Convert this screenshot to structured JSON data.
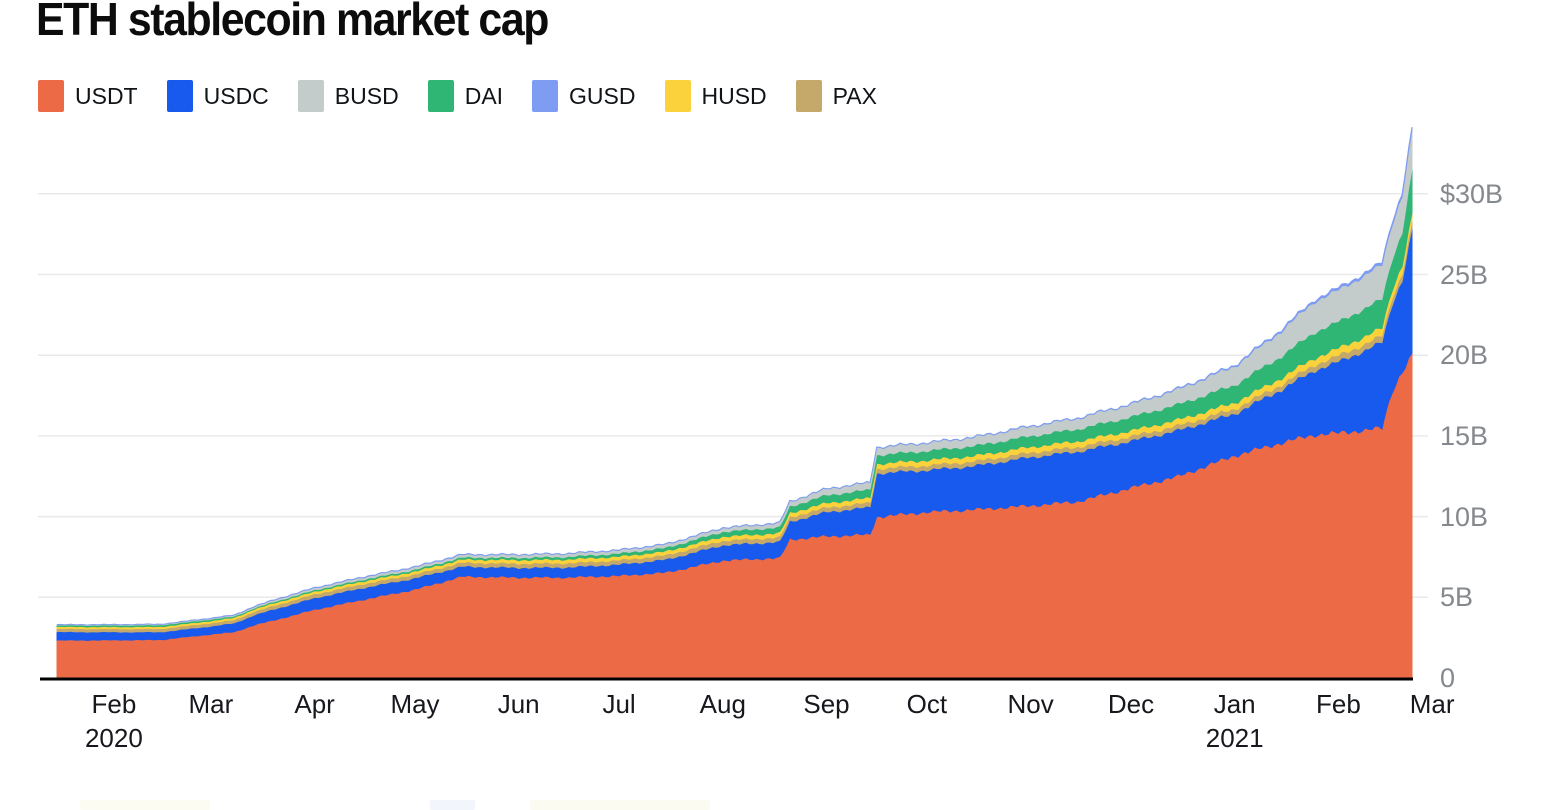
{
  "page": {
    "title": "ETH stablecoin market cap"
  },
  "legend": [
    {
      "label": "USDT",
      "color": "#EC6A45"
    },
    {
      "label": "USDC",
      "color": "#1859EE"
    },
    {
      "label": "BUSD",
      "color": "#C3CCCA"
    },
    {
      "label": "DAI",
      "color": "#2FB574"
    },
    {
      "label": "GUSD",
      "color": "#7E9CF1"
    },
    {
      "label": "HUSD",
      "color": "#FBD23C"
    },
    {
      "label": "PAX",
      "color": "#C4A96A"
    }
  ],
  "chart_data": {
    "type": "area",
    "stacked": true,
    "title": "ETH stablecoin market cap",
    "units": "billions USD",
    "grid": true,
    "legend_position": "top-left",
    "x_axis": "time, mid-Jan 2020 to late Feb 2021 (t = days since 2020-01-15)",
    "x_range": [
      0,
      405
    ],
    "ylim": [
      0,
      34.3
    ],
    "y_ticks": [
      {
        "v": 30,
        "label": "$30B"
      },
      {
        "v": 25,
        "label": "25B"
      },
      {
        "v": 20,
        "label": "20B"
      },
      {
        "v": 15,
        "label": "15B"
      },
      {
        "v": 10,
        "label": "10B"
      },
      {
        "v": 5,
        "label": "5B"
      },
      {
        "v": 0,
        "label": "0"
      }
    ],
    "x_ticks": [
      {
        "t": 17,
        "label": "Feb",
        "sub": "2020"
      },
      {
        "t": 46,
        "label": "Mar"
      },
      {
        "t": 77,
        "label": "Apr"
      },
      {
        "t": 107,
        "label": "May"
      },
      {
        "t": 138,
        "label": "Jun"
      },
      {
        "t": 168,
        "label": "Jul"
      },
      {
        "t": 199,
        "label": "Aug"
      },
      {
        "t": 230,
        "label": "Sep"
      },
      {
        "t": 260,
        "label": "Oct"
      },
      {
        "t": 291,
        "label": "Nov"
      },
      {
        "t": 321,
        "label": "Dec"
      },
      {
        "t": 352,
        "label": "Jan",
        "sub": "2021"
      },
      {
        "t": 383,
        "label": "Feb"
      },
      {
        "t": 411,
        "label": "Mar"
      }
    ],
    "stack_order_bottom_to_top": [
      "USDT",
      "USDC",
      "PAX",
      "HUSD",
      "DAI",
      "BUSD",
      "GUSD"
    ],
    "series": [
      {
        "name": "USDT",
        "color": "#EC6A45",
        "points": [
          [
            0,
            2.35
          ],
          [
            17,
            2.36
          ],
          [
            31,
            2.38
          ],
          [
            46,
            2.72
          ],
          [
            53,
            2.86
          ],
          [
            59,
            3.3
          ],
          [
            65,
            3.6
          ],
          [
            77,
            4.25
          ],
          [
            91,
            4.85
          ],
          [
            107,
            5.5
          ],
          [
            121,
            6.3
          ],
          [
            138,
            6.25
          ],
          [
            152,
            6.25
          ],
          [
            168,
            6.35
          ],
          [
            182,
            6.55
          ],
          [
            199,
            7.3
          ],
          [
            216,
            7.45
          ],
          [
            219,
            8.6
          ],
          [
            230,
            8.8
          ],
          [
            243,
            8.9
          ],
          [
            245,
            10.0
          ],
          [
            260,
            10.3
          ],
          [
            274,
            10.45
          ],
          [
            291,
            10.7
          ],
          [
            305,
            10.95
          ],
          [
            321,
            11.8
          ],
          [
            335,
            12.5
          ],
          [
            352,
            13.8
          ],
          [
            366,
            14.6
          ],
          [
            376,
            15.1
          ],
          [
            383,
            15.2
          ],
          [
            396,
            15.5
          ],
          [
            399,
            17.8
          ],
          [
            402,
            19.0
          ],
          [
            405,
            20.0
          ]
        ]
      },
      {
        "name": "USDC",
        "color": "#1859EE",
        "points": [
          [
            0,
            0.52
          ],
          [
            17,
            0.5
          ],
          [
            31,
            0.48
          ],
          [
            46,
            0.5
          ],
          [
            53,
            0.55
          ],
          [
            59,
            0.62
          ],
          [
            65,
            0.68
          ],
          [
            77,
            0.72
          ],
          [
            91,
            0.73
          ],
          [
            107,
            0.7
          ],
          [
            121,
            0.62
          ],
          [
            138,
            0.6
          ],
          [
            152,
            0.62
          ],
          [
            168,
            0.7
          ],
          [
            182,
            0.8
          ],
          [
            199,
            0.95
          ],
          [
            216,
            1.0
          ],
          [
            219,
            1.1
          ],
          [
            230,
            1.5
          ],
          [
            243,
            1.7
          ],
          [
            245,
            2.7
          ],
          [
            260,
            2.6
          ],
          [
            274,
            2.7
          ],
          [
            291,
            3.0
          ],
          [
            305,
            3.1
          ],
          [
            321,
            2.9
          ],
          [
            335,
            2.85
          ],
          [
            352,
            2.6
          ],
          [
            366,
            3.3
          ],
          [
            376,
            4.0
          ],
          [
            383,
            4.4
          ],
          [
            396,
            5.3
          ],
          [
            399,
            5.4
          ],
          [
            402,
            5.7
          ],
          [
            405,
            7.8
          ]
        ]
      },
      {
        "name": "PAX",
        "color": "#C4A96A",
        "points": [
          [
            0,
            0.2
          ],
          [
            17,
            0.2
          ],
          [
            31,
            0.2
          ],
          [
            46,
            0.2
          ],
          [
            53,
            0.2
          ],
          [
            59,
            0.21
          ],
          [
            65,
            0.22
          ],
          [
            77,
            0.24
          ],
          [
            91,
            0.24
          ],
          [
            107,
            0.24
          ],
          [
            121,
            0.24
          ],
          [
            138,
            0.26
          ],
          [
            152,
            0.26
          ],
          [
            168,
            0.26
          ],
          [
            182,
            0.27
          ],
          [
            199,
            0.28
          ],
          [
            216,
            0.28
          ],
          [
            219,
            0.28
          ],
          [
            230,
            0.28
          ],
          [
            243,
            0.28
          ],
          [
            245,
            0.29
          ],
          [
            260,
            0.29
          ],
          [
            274,
            0.29
          ],
          [
            291,
            0.29
          ],
          [
            305,
            0.29
          ],
          [
            321,
            0.29
          ],
          [
            335,
            0.3
          ],
          [
            352,
            0.3
          ],
          [
            366,
            0.32
          ],
          [
            376,
            0.35
          ],
          [
            383,
            0.38
          ],
          [
            396,
            0.4
          ],
          [
            399,
            0.41
          ],
          [
            402,
            0.42
          ],
          [
            405,
            0.45
          ]
        ]
      },
      {
        "name": "HUSD",
        "color": "#FBD23C",
        "points": [
          [
            0,
            0.12
          ],
          [
            17,
            0.12
          ],
          [
            31,
            0.13
          ],
          [
            46,
            0.13
          ],
          [
            53,
            0.14
          ],
          [
            59,
            0.15
          ],
          [
            65,
            0.16
          ],
          [
            77,
            0.16
          ],
          [
            91,
            0.17
          ],
          [
            107,
            0.18
          ],
          [
            121,
            0.2
          ],
          [
            138,
            0.22
          ],
          [
            152,
            0.23
          ],
          [
            168,
            0.23
          ],
          [
            182,
            0.24
          ],
          [
            199,
            0.25
          ],
          [
            216,
            0.26
          ],
          [
            219,
            0.26
          ],
          [
            230,
            0.28
          ],
          [
            243,
            0.29
          ],
          [
            245,
            0.3
          ],
          [
            260,
            0.32
          ],
          [
            274,
            0.33
          ],
          [
            291,
            0.34
          ],
          [
            305,
            0.35
          ],
          [
            321,
            0.35
          ],
          [
            335,
            0.36
          ],
          [
            352,
            0.38
          ],
          [
            366,
            0.4
          ],
          [
            376,
            0.42
          ],
          [
            383,
            0.45
          ],
          [
            396,
            0.48
          ],
          [
            399,
            0.49
          ],
          [
            402,
            0.5
          ],
          [
            405,
            0.5
          ]
        ]
      },
      {
        "name": "DAI",
        "color": "#2FB574",
        "points": [
          [
            0,
            0.09
          ],
          [
            17,
            0.1
          ],
          [
            31,
            0.1
          ],
          [
            46,
            0.1
          ],
          [
            53,
            0.08
          ],
          [
            59,
            0.07
          ],
          [
            65,
            0.08
          ],
          [
            77,
            0.09
          ],
          [
            91,
            0.1
          ],
          [
            107,
            0.11
          ],
          [
            121,
            0.12
          ],
          [
            138,
            0.14
          ],
          [
            152,
            0.16
          ],
          [
            168,
            0.19
          ],
          [
            182,
            0.22
          ],
          [
            199,
            0.3
          ],
          [
            216,
            0.36
          ],
          [
            219,
            0.4
          ],
          [
            230,
            0.48
          ],
          [
            243,
            0.52
          ],
          [
            245,
            0.55
          ],
          [
            260,
            0.58
          ],
          [
            274,
            0.62
          ],
          [
            291,
            0.68
          ],
          [
            305,
            0.75
          ],
          [
            321,
            0.85
          ],
          [
            335,
            0.95
          ],
          [
            352,
            1.1
          ],
          [
            366,
            1.35
          ],
          [
            376,
            1.6
          ],
          [
            383,
            1.65
          ],
          [
            396,
            1.8
          ],
          [
            399,
            1.9
          ],
          [
            402,
            2.05
          ],
          [
            405,
            2.75
          ]
        ]
      },
      {
        "name": "BUSD",
        "color": "#C3CCCA",
        "points": [
          [
            0,
            0.02
          ],
          [
            17,
            0.03
          ],
          [
            31,
            0.04
          ],
          [
            46,
            0.05
          ],
          [
            53,
            0.06
          ],
          [
            59,
            0.08
          ],
          [
            65,
            0.1
          ],
          [
            77,
            0.12
          ],
          [
            91,
            0.14
          ],
          [
            107,
            0.15
          ],
          [
            121,
            0.16
          ],
          [
            138,
            0.17
          ],
          [
            152,
            0.18
          ],
          [
            168,
            0.19
          ],
          [
            182,
            0.2
          ],
          [
            199,
            0.22
          ],
          [
            216,
            0.25
          ],
          [
            219,
            0.28
          ],
          [
            230,
            0.38
          ],
          [
            243,
            0.42
          ],
          [
            245,
            0.45
          ],
          [
            260,
            0.48
          ],
          [
            274,
            0.52
          ],
          [
            291,
            0.58
          ],
          [
            305,
            0.65
          ],
          [
            321,
            0.78
          ],
          [
            335,
            0.92
          ],
          [
            352,
            1.15
          ],
          [
            366,
            1.55
          ],
          [
            376,
            1.9
          ],
          [
            383,
            1.95
          ],
          [
            396,
            2.1
          ],
          [
            399,
            2.15
          ],
          [
            402,
            2.25
          ],
          [
            405,
            2.4
          ]
        ]
      },
      {
        "name": "GUSD",
        "color": "#7E9CF1",
        "points": [
          [
            0,
            0.0
          ],
          [
            17,
            0.0
          ],
          [
            31,
            0.0
          ],
          [
            46,
            0.01
          ],
          [
            53,
            0.01
          ],
          [
            59,
            0.01
          ],
          [
            65,
            0.01
          ],
          [
            77,
            0.01
          ],
          [
            91,
            0.01
          ],
          [
            107,
            0.01
          ],
          [
            121,
            0.01
          ],
          [
            138,
            0.01
          ],
          [
            152,
            0.01
          ],
          [
            168,
            0.01
          ],
          [
            182,
            0.01
          ],
          [
            199,
            0.01
          ],
          [
            216,
            0.01
          ],
          [
            219,
            0.01
          ],
          [
            230,
            0.01
          ],
          [
            243,
            0.01
          ],
          [
            245,
            0.01
          ],
          [
            260,
            0.01
          ],
          [
            274,
            0.01
          ],
          [
            291,
            0.02
          ],
          [
            305,
            0.02
          ],
          [
            321,
            0.02
          ],
          [
            335,
            0.03
          ],
          [
            352,
            0.05
          ],
          [
            366,
            0.08
          ],
          [
            376,
            0.1
          ],
          [
            383,
            0.12
          ],
          [
            396,
            0.13
          ],
          [
            399,
            0.13
          ],
          [
            402,
            0.14
          ],
          [
            405,
            0.15
          ]
        ]
      }
    ]
  }
}
